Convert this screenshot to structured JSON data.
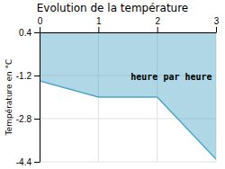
{
  "chart_data": {
    "type": "area",
    "title": "Evolution de la température",
    "y_label": "Température en °C",
    "x": [
      0,
      1,
      2,
      3
    ],
    "values": [
      -1.4,
      -2.0,
      -2.0,
      -4.3
    ],
    "color": "#4da6c8",
    "xlim": [
      0,
      3
    ],
    "ylim": [
      -4.4,
      0.4
    ],
    "xticks": [
      0,
      1,
      2,
      3
    ],
    "yticks": [
      -4.4,
      -2.8,
      -1.2,
      0.4
    ],
    "grid": true,
    "annotations": [
      {
        "text": "heure par heure",
        "x": 1.55,
        "y": -1.35
      }
    ]
  }
}
